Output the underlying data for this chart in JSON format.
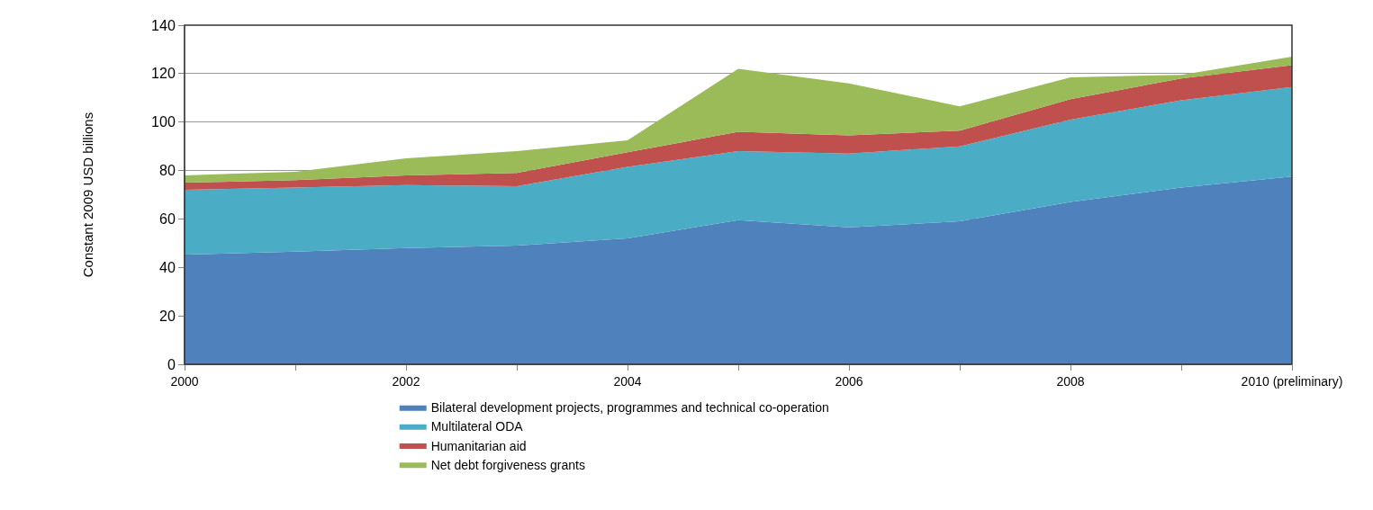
{
  "chart_data": {
    "type": "area",
    "stacked": true,
    "ylabel": "Constant 2009 USD billions",
    "categories": [
      "2000",
      null,
      "2002",
      null,
      "2004",
      null,
      "2006",
      null,
      "2008",
      null,
      "2010 (preliminary)"
    ],
    "series": [
      {
        "name": "Bilateral development projects, programmes and technical co-operation",
        "color": "#4f81bd",
        "values": [
          45.3,
          46.5,
          48,
          49,
          52,
          59.5,
          56.5,
          59,
          67,
          73,
          77.5
        ]
      },
      {
        "name": "Multilateral ODA",
        "color": "#4bacc6",
        "values": [
          26.7,
          26.5,
          26,
          24.5,
          29.5,
          28.5,
          30.5,
          31,
          34,
          36,
          37
        ]
      },
      {
        "name": "Humanitarian aid",
        "color": "#c0504d",
        "values": [
          3,
          3,
          4,
          5.5,
          6,
          8,
          7.5,
          6.5,
          8.5,
          9,
          9
        ]
      },
      {
        "name": "Net debt forgiveness grants",
        "color": "#9bbb59",
        "values": [
          3,
          3.5,
          7,
          9,
          5,
          26,
          21.5,
          10,
          9,
          1.5,
          3.5
        ]
      }
    ],
    "ylim": [
      0,
      140
    ],
    "yticks": [
      0,
      20,
      40,
      60,
      80,
      100,
      120,
      140
    ],
    "grid": "y",
    "legend": "bottom"
  }
}
